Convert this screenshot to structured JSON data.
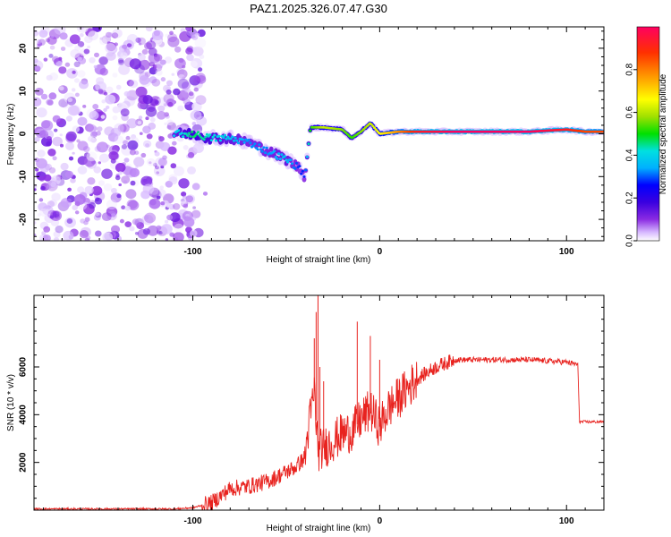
{
  "title": "PAZ1.2025.326.07.47.G30",
  "colors": {
    "series": "#e8231f",
    "axis": "#000000",
    "background": "#ffffff"
  },
  "chart_data": [
    {
      "type": "heatmap",
      "name": "spectrogram",
      "xlabel": "Height of straight line (km)",
      "ylabel": "Frequency (Hz)",
      "xlim": [
        -185,
        120
      ],
      "ylim": [
        -25,
        25
      ],
      "xticks": [
        -100,
        0,
        100
      ],
      "yticks": [
        -20,
        -10,
        0,
        10,
        20
      ],
      "colorbar": {
        "label": "Normalized spectral amplitude",
        "range": [
          0,
          1
        ],
        "ticks": [
          0.0,
          0.2,
          0.4,
          0.6,
          0.8
        ],
        "colormap": [
          "#ffffff",
          "#d6b8ff",
          "#8a2be2",
          "#3a00e0",
          "#0000ff",
          "#00b0ff",
          "#00e0e0",
          "#00e000",
          "#a0e000",
          "#ffff00",
          "#ffa000",
          "#ff3000",
          "#ff0060"
        ]
      },
      "ridge": {
        "x": [
          -110,
          -100,
          -90,
          -80,
          -70,
          -60,
          -50,
          -43,
          -40,
          -37,
          -30,
          -20,
          -15,
          -10,
          -5,
          0,
          10,
          20,
          40,
          60,
          80,
          100,
          110,
          120
        ],
        "y": [
          0,
          0,
          -1,
          -1,
          -2,
          -4,
          -6,
          -8,
          -10,
          1.5,
          1.5,
          1.0,
          -1.0,
          0.5,
          2.5,
          0,
          0.5,
          0.5,
          0.5,
          0.5,
          0.5,
          1.0,
          0.5,
          0.5
        ],
        "amplitude": [
          0.45,
          0.55,
          0.5,
          0.45,
          0.4,
          0.4,
          0.45,
          0.35,
          0.35,
          0.6,
          0.7,
          0.65,
          0.6,
          0.65,
          0.7,
          0.75,
          0.85,
          0.95,
          1.0,
          1.0,
          1.0,
          0.95,
          0.9,
          0.9
        ]
      },
      "noise_region": {
        "x_range": [
          -185,
          -95
        ],
        "amplitude_max": 0.25
      }
    },
    {
      "type": "line",
      "name": "snr",
      "xlabel": "Height of straight line (km)",
      "ylabel": "SNR (10 * v/v)",
      "xlim": [
        -185,
        120
      ],
      "ylim": [
        0,
        9000
      ],
      "xticks": [
        -100,
        0,
        100
      ],
      "yticks": [
        2000,
        4000,
        6000
      ],
      "series": [
        {
          "name": "SNR",
          "x": [
            -185,
            -150,
            -110,
            -100,
            -90,
            -85,
            -80,
            -70,
            -60,
            -50,
            -45,
            -40,
            -38,
            -35,
            -33,
            -30,
            -25,
            -20,
            -15,
            -10,
            -5,
            0,
            5,
            10,
            20,
            30,
            40,
            60,
            80,
            100,
            106,
            107,
            110,
            120
          ],
          "y": [
            50,
            50,
            50,
            100,
            300,
            600,
            900,
            1000,
            1200,
            1600,
            1800,
            2200,
            3500,
            5000,
            2500,
            2600,
            2900,
            3200,
            3300,
            3800,
            4200,
            3500,
            4300,
            4700,
            5500,
            6000,
            6300,
            6300,
            6300,
            6200,
            6100,
            3700,
            3700,
            3700
          ],
          "spikes": [
            {
              "x": -33,
              "y": 9000
            },
            {
              "x": -34,
              "y": 8300
            },
            {
              "x": -35,
              "y": 7200
            },
            {
              "x": -32,
              "y": 6000
            },
            {
              "x": -30,
              "y": 5400
            },
            {
              "x": -5,
              "y": 7300
            },
            {
              "x": -12,
              "y": 7900
            },
            {
              "x": 0,
              "y": 6300
            }
          ]
        }
      ]
    }
  ]
}
